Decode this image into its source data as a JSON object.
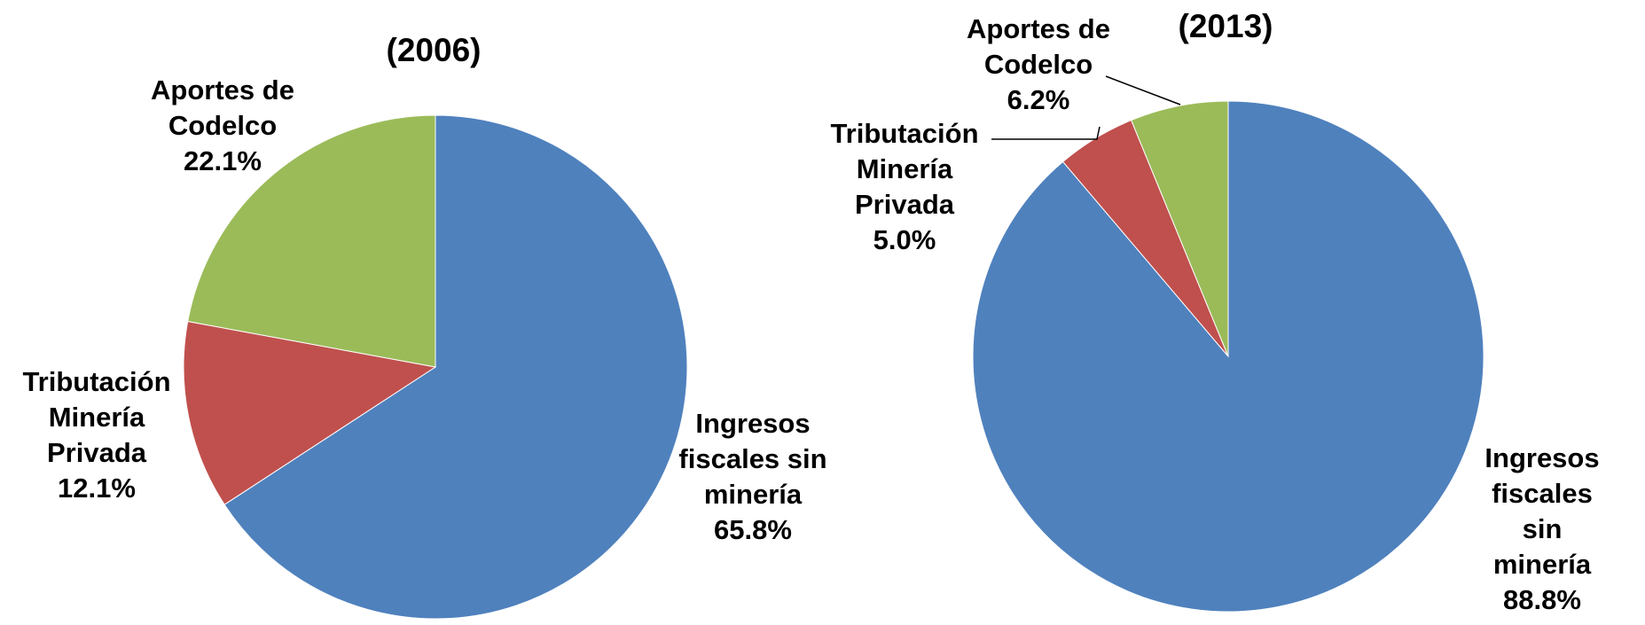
{
  "chart_data": [
    {
      "type": "pie",
      "title": "(2006)",
      "categories": [
        "Ingresos\nfiscales sin\nminería",
        "Tributación\nMinería\nPrivada",
        "Aportes de\nCodelco"
      ],
      "values": [
        65.8,
        12.1,
        22.1
      ],
      "value_labels": [
        "65.8%",
        "12.1%",
        "22.1%"
      ],
      "colors": [
        "#4f81bd",
        "#c0504d",
        "#9bbb59"
      ]
    },
    {
      "type": "pie",
      "title": "(2013)",
      "categories": [
        "Ingresos\nfiscales sin\nminería",
        "Tributación\nMinería\nPrivada",
        "Aportes de\nCodelco"
      ],
      "values": [
        88.8,
        5.0,
        6.2
      ],
      "value_labels": [
        "88.8%",
        "5.0%",
        "6.2%"
      ],
      "colors": [
        "#4f81bd",
        "#c0504d",
        "#9bbb59"
      ]
    }
  ]
}
